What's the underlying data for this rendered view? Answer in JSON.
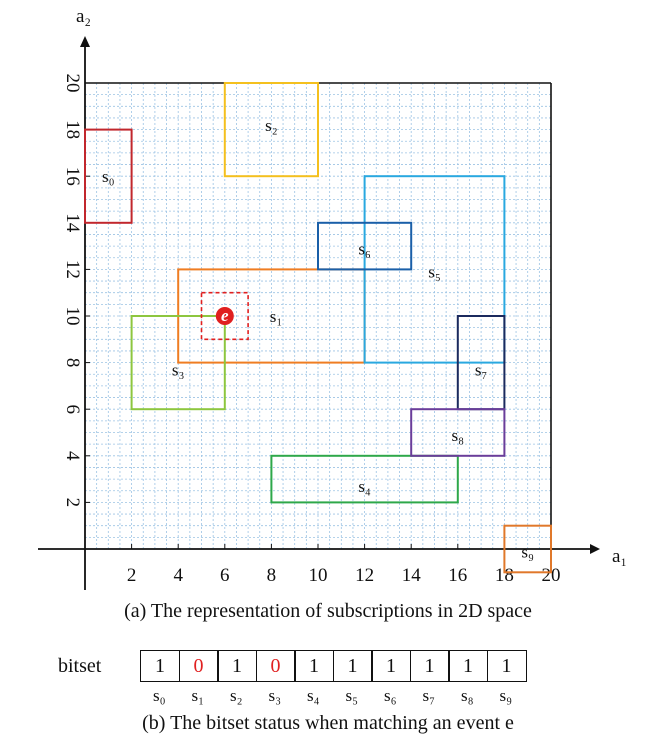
{
  "figure": {
    "x_axis_label": "a₁",
    "y_axis_label": "a₂",
    "x_ticks": [
      2,
      4,
      6,
      8,
      10,
      12,
      14,
      16,
      18,
      20
    ],
    "y_ticks": [
      2,
      4,
      6,
      8,
      10,
      12,
      14,
      16,
      18,
      20
    ],
    "domain": [
      0,
      20
    ],
    "subscriptions": [
      {
        "label": "s₀",
        "x1": 0,
        "x2": 2,
        "y1": 14,
        "y2": 18,
        "color": "#c1272d"
      },
      {
        "label": "s₁",
        "x1": 4,
        "x2": 12,
        "y1": 8,
        "y2": 12,
        "color": "#ef7d22"
      },
      {
        "label": "s₂",
        "x1": 6,
        "x2": 10,
        "y1": 16,
        "y2": 20,
        "color": "#f4c01e"
      },
      {
        "label": "s₃",
        "x1": 2,
        "x2": 6,
        "y1": 6,
        "y2": 10,
        "color": "#8dc63f"
      },
      {
        "label": "s₄",
        "x1": 8,
        "x2": 16,
        "y1": 2,
        "y2": 4,
        "color": "#2ea84a"
      },
      {
        "label": "s₅",
        "x1": 12,
        "x2": 18,
        "y1": 8,
        "y2": 16,
        "color": "#29a8e0"
      },
      {
        "label": "s₆",
        "x1": 10,
        "x2": 14,
        "y1": 12,
        "y2": 14,
        "color": "#1a5fa8"
      },
      {
        "label": "s₇",
        "x1": 16,
        "x2": 18,
        "y1": 6,
        "y2": 10,
        "color": "#1b2a5e"
      },
      {
        "label": "s₈",
        "x1": 14,
        "x2": 18,
        "y1": 4,
        "y2": 6,
        "color": "#6a3d9a"
      },
      {
        "label": "s₉",
        "x1": 18,
        "x2": 20,
        "y1": -1,
        "y2": 1,
        "color": "#e0782a"
      }
    ],
    "event": {
      "label": "e",
      "x": 6,
      "y": 10,
      "color": "#e02020"
    },
    "event_box": {
      "x1": 5,
      "x2": 7,
      "y1": 9,
      "y2": 11,
      "color": "#e02020"
    }
  },
  "caption_a": "(a) The representation of subscriptions in 2D space",
  "bitset": {
    "title": "bitset",
    "values": [
      "1",
      "0",
      "1",
      "0",
      "1",
      "1",
      "1",
      "1",
      "1",
      "1"
    ],
    "highlight_color": "#e02020",
    "labels": [
      "s₀",
      "s₁",
      "s₂",
      "s₃",
      "s₄",
      "s₅",
      "s₆",
      "s₇",
      "s₈",
      "s₉"
    ]
  },
  "caption_b": "(b) The bitset status when matching an event e"
}
